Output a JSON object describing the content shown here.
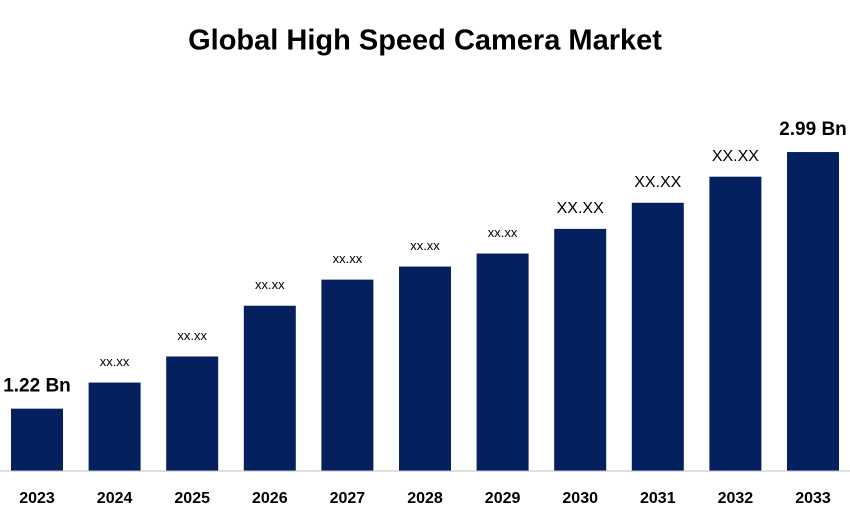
{
  "chart_data": {
    "type": "bar",
    "title": "Global High Speed Camera Market",
    "categories": [
      "2023",
      "2024",
      "2025",
      "2026",
      "2027",
      "2028",
      "2029",
      "2030",
      "2031",
      "2032",
      "2033"
    ],
    "values": [
      1.22,
      1.4,
      1.58,
      1.93,
      2.11,
      2.2,
      2.29,
      2.46,
      2.64,
      2.82,
      2.99
    ],
    "value_labels": [
      "1.22 Bn",
      "xx.xx",
      "xx.xx",
      "xx.xx",
      "xx.xx",
      "xx.xx",
      "xx.xx",
      "XX.XX",
      "XX.XX",
      "XX.XX",
      "2.99 Bn"
    ],
    "color": "#04205f",
    "ylim": [
      0.79,
      3.28
    ]
  }
}
